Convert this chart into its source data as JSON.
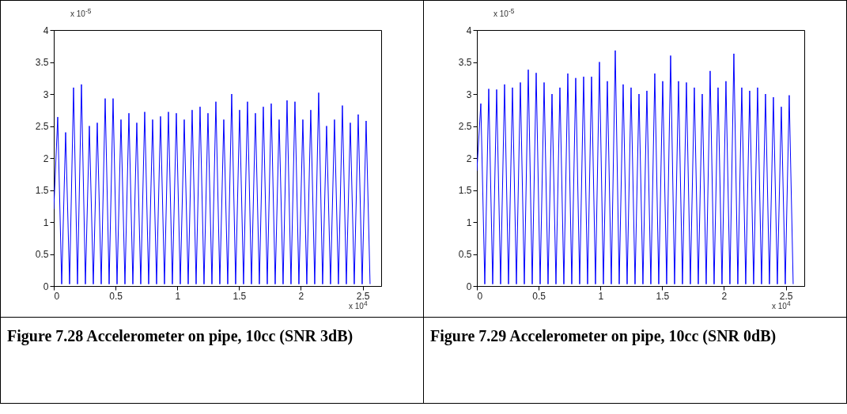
{
  "chart_data": [
    {
      "type": "line",
      "title": "Figure 7.28 Accelerometer on pipe, 10cc (SNR 3dB)",
      "annotations": [
        "x 10$^{-5}$",
        "x 10$^{4}$"
      ],
      "xlim": [
        0,
        2.65
      ],
      "xticks": [
        0,
        0.5,
        1,
        1.5,
        2,
        2.5
      ],
      "ylim": [
        0,
        4
      ],
      "yticks": [
        0,
        0.5,
        1,
        1.5,
        2,
        2.5,
        3,
        3.5,
        4
      ],
      "x": [
        0,
        0.032,
        0.064,
        0.096,
        0.128,
        0.16,
        0.192,
        0.224,
        0.256,
        0.288,
        0.32,
        0.352,
        0.384,
        0.416,
        0.448,
        0.48,
        0.512,
        0.544,
        0.576,
        0.608,
        0.64,
        0.672,
        0.704,
        0.736,
        0.768,
        0.8,
        0.832,
        0.864,
        0.896,
        0.928,
        0.96,
        0.992,
        1.024,
        1.056,
        1.088,
        1.12,
        1.152,
        1.184,
        1.216,
        1.248,
        1.28,
        1.312,
        1.344,
        1.376,
        1.408,
        1.44,
        1.472,
        1.504,
        1.536,
        1.568,
        1.6,
        1.632,
        1.664,
        1.696,
        1.728,
        1.76,
        1.792,
        1.824,
        1.856,
        1.888,
        1.92,
        1.952,
        1.984,
        2.016,
        2.048,
        2.08,
        2.112,
        2.144,
        2.176,
        2.208,
        2.24,
        2.272,
        2.304,
        2.336,
        2.368,
        2.4,
        2.432,
        2.464,
        2.496,
        2.528,
        2.56
      ],
      "series": [
        {
          "color": "#0000ff",
          "values": [
            1.2,
            2.64,
            0.03,
            2.4,
            0.03,
            3.1,
            0.03,
            3.15,
            0.03,
            2.5,
            0.03,
            2.55,
            0.03,
            2.93,
            0.03,
            2.93,
            0.03,
            2.6,
            0.03,
            2.7,
            0.03,
            2.55,
            0.03,
            2.72,
            0.03,
            2.6,
            0.03,
            2.65,
            0.03,
            2.72,
            0.03,
            2.7,
            0.03,
            2.6,
            0.03,
            2.75,
            0.03,
            2.8,
            0.03,
            2.7,
            0.03,
            2.88,
            0.03,
            2.6,
            0.03,
            3.0,
            0.03,
            2.75,
            0.03,
            2.88,
            0.03,
            2.7,
            0.03,
            2.8,
            0.03,
            2.85,
            0.03,
            2.6,
            0.03,
            2.9,
            0.03,
            2.88,
            0.03,
            2.6,
            0.03,
            2.75,
            0.03,
            3.02,
            0.03,
            2.5,
            0.03,
            2.6,
            0.03,
            2.82,
            0.03,
            2.55,
            0.03,
            2.68,
            0.03,
            2.58,
            0.03
          ]
        }
      ]
    },
    {
      "type": "line",
      "title": "Figure 7.29 Accelerometer on pipe, 10cc (SNR 0dB)",
      "annotations": [
        "x 10$^{-5}$",
        "x 10$^{4}$"
      ],
      "xlim": [
        0,
        2.65
      ],
      "xticks": [
        0,
        0.5,
        1,
        1.5,
        2,
        2.5
      ],
      "ylim": [
        0,
        4
      ],
      "yticks": [
        0,
        0.5,
        1,
        1.5,
        2,
        2.5,
        3,
        3.5,
        4
      ],
      "x": [
        0,
        0.032,
        0.064,
        0.096,
        0.128,
        0.16,
        0.192,
        0.224,
        0.256,
        0.288,
        0.32,
        0.352,
        0.384,
        0.416,
        0.448,
        0.48,
        0.512,
        0.544,
        0.576,
        0.608,
        0.64,
        0.672,
        0.704,
        0.736,
        0.768,
        0.8,
        0.832,
        0.864,
        0.896,
        0.928,
        0.96,
        0.992,
        1.024,
        1.056,
        1.088,
        1.12,
        1.152,
        1.184,
        1.216,
        1.248,
        1.28,
        1.312,
        1.344,
        1.376,
        1.408,
        1.44,
        1.472,
        1.504,
        1.536,
        1.568,
        1.6,
        1.632,
        1.664,
        1.696,
        1.728,
        1.76,
        1.792,
        1.824,
        1.856,
        1.888,
        1.92,
        1.952,
        1.984,
        2.016,
        2.048,
        2.08,
        2.112,
        2.144,
        2.176,
        2.208,
        2.24,
        2.272,
        2.304,
        2.336,
        2.368,
        2.4,
        2.432,
        2.464,
        2.496,
        2.528,
        2.56
      ],
      "series": [
        {
          "color": "#0000ff",
          "values": [
            1.8,
            2.85,
            0.03,
            3.08,
            0.03,
            3.07,
            0.03,
            3.15,
            0.03,
            3.1,
            0.03,
            3.18,
            0.03,
            3.38,
            0.03,
            3.33,
            0.03,
            3.18,
            0.03,
            3.0,
            0.03,
            3.1,
            0.03,
            3.32,
            0.03,
            3.25,
            0.03,
            3.27,
            0.03,
            3.27,
            0.03,
            3.5,
            0.03,
            3.2,
            0.03,
            3.68,
            0.03,
            3.15,
            0.03,
            3.1,
            0.03,
            3.0,
            0.03,
            3.05,
            0.03,
            3.32,
            0.03,
            3.2,
            0.03,
            3.6,
            0.03,
            3.2,
            0.03,
            3.18,
            0.03,
            3.1,
            0.03,
            3.0,
            0.03,
            3.36,
            0.03,
            3.1,
            0.03,
            3.2,
            0.03,
            3.63,
            0.03,
            3.1,
            0.03,
            3.05,
            0.03,
            3.1,
            0.03,
            3.0,
            0.03,
            2.95,
            0.03,
            2.8,
            0.03,
            2.98,
            0.03
          ]
        }
      ]
    }
  ]
}
